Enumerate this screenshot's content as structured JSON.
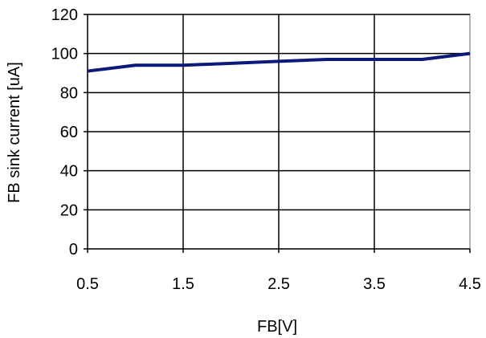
{
  "chart_data": {
    "type": "line",
    "title": "",
    "xlabel": "FB[V]",
    "ylabel": "FB sink current [uA]",
    "xlim": [
      0.5,
      4.5
    ],
    "ylim": [
      0,
      120
    ],
    "x_ticks": [
      0.5,
      1.5,
      2.5,
      3.5,
      4.5
    ],
    "x_tick_labels": [
      "0.5",
      "1.5",
      "2.5",
      "3.5",
      "4.5"
    ],
    "y_ticks": [
      0,
      20,
      40,
      60,
      80,
      100,
      120
    ],
    "y_tick_labels": [
      "0",
      "20",
      "40",
      "60",
      "80",
      "100",
      "120"
    ],
    "grid": true,
    "legend": "none",
    "series": [
      {
        "color": "#0b1a7a",
        "x": [
          0.5,
          1.0,
          1.5,
          2.0,
          2.5,
          3.0,
          3.5,
          4.0,
          4.5
        ],
        "y": [
          91,
          94,
          94,
          95,
          96,
          97,
          97,
          97,
          100
        ]
      }
    ]
  }
}
